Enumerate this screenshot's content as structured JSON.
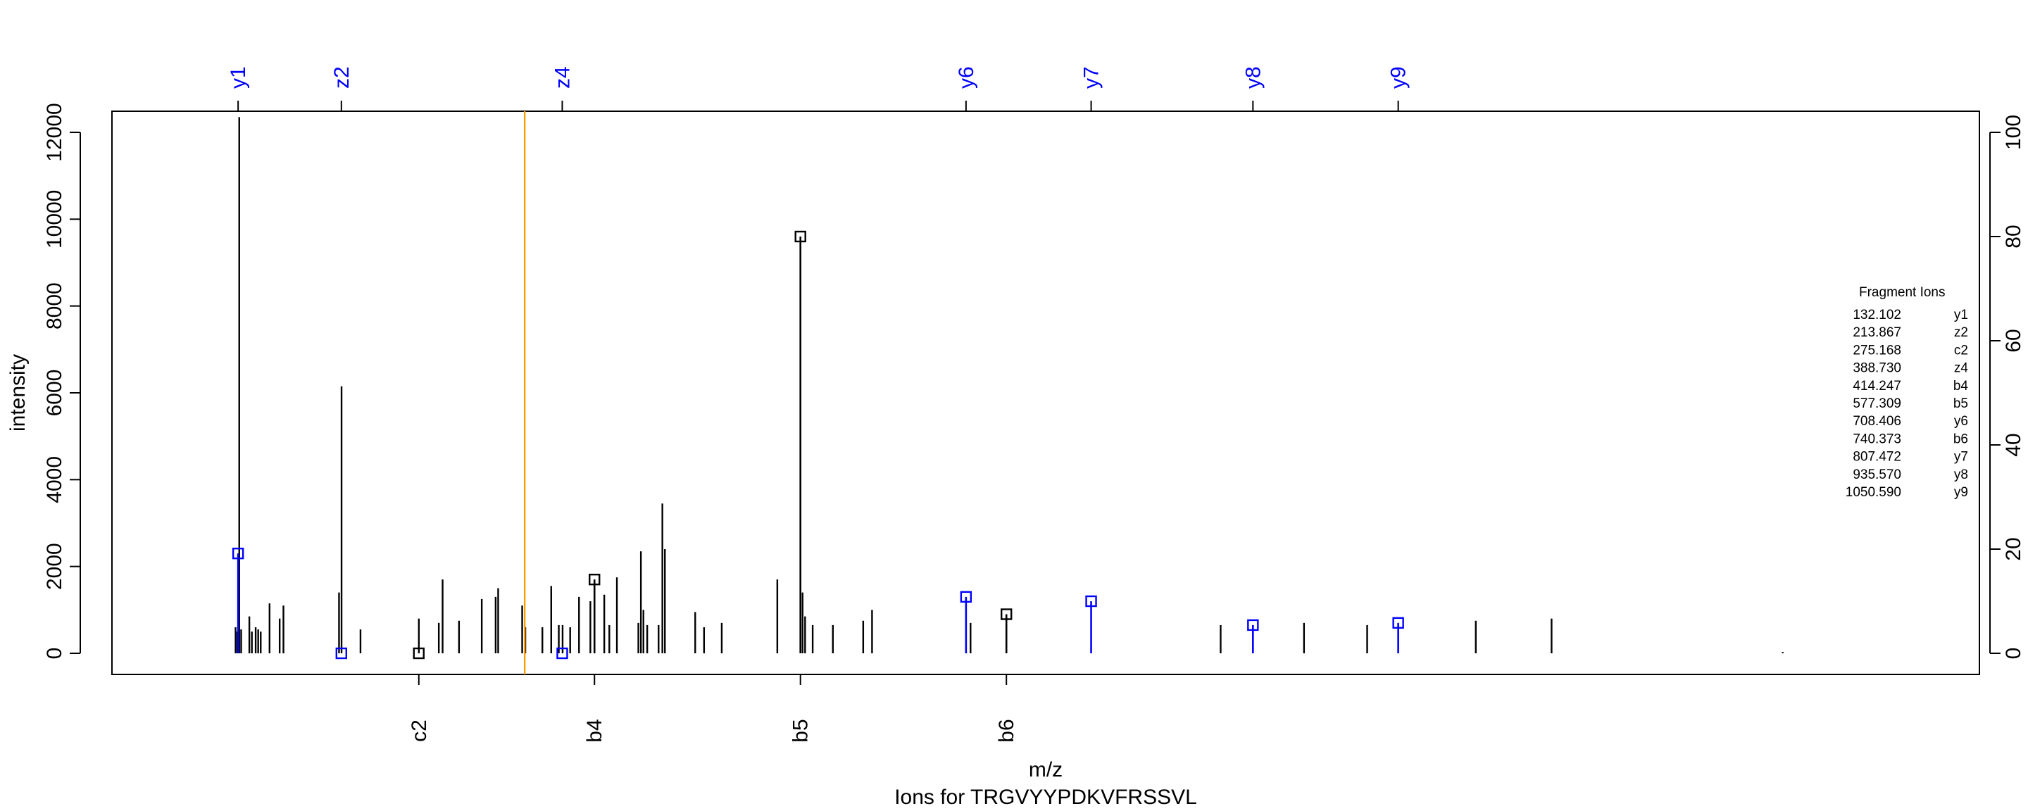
{
  "chart_data": {
    "type": "bar",
    "title": "Ions for TRGVYYPDKVFRSSVL",
    "xlabel": "m/z",
    "ylabel": "intensity",
    "xlim": [
      30,
      1460
    ],
    "ylim": [
      0,
      12400
    ],
    "ylim_right": [
      0,
      100
    ],
    "yticks_left": [
      "0",
      "2000",
      "4000",
      "6000",
      "8000",
      "10000",
      "12000"
    ],
    "yticks_left_values": [
      0,
      2000,
      4000,
      6000,
      8000,
      10000,
      12000
    ],
    "yticks_right": [
      "0",
      "20",
      "40",
      "60",
      "80",
      "100"
    ],
    "yticks_right_values": [
      0,
      20,
      40,
      60,
      80,
      100
    ],
    "grid": false,
    "precursor_line": {
      "mz": 359,
      "color": "#ff9f00"
    },
    "peaks": [
      {
        "mz": 130.1,
        "intensity": 600
      },
      {
        "mz": 131.5,
        "intensity": 500
      },
      {
        "mz": 133.0,
        "intensity": 12350
      },
      {
        "mz": 134.5,
        "intensity": 550
      },
      {
        "mz": 141,
        "intensity": 850
      },
      {
        "mz": 143,
        "intensity": 500
      },
      {
        "mz": 146,
        "intensity": 600
      },
      {
        "mz": 148,
        "intensity": 550
      },
      {
        "mz": 150,
        "intensity": 500
      },
      {
        "mz": 157,
        "intensity": 1150
      },
      {
        "mz": 165,
        "intensity": 800
      },
      {
        "mz": 168,
        "intensity": 1100
      },
      {
        "mz": 212,
        "intensity": 1400
      },
      {
        "mz": 214,
        "intensity": 6150
      },
      {
        "mz": 229,
        "intensity": 550
      },
      {
        "mz": 275.2,
        "intensity": 800
      },
      {
        "mz": 291,
        "intensity": 700
      },
      {
        "mz": 294,
        "intensity": 1700
      },
      {
        "mz": 307,
        "intensity": 750
      },
      {
        "mz": 325,
        "intensity": 1250
      },
      {
        "mz": 336,
        "intensity": 1300
      },
      {
        "mz": 338,
        "intensity": 1500
      },
      {
        "mz": 357,
        "intensity": 1100
      },
      {
        "mz": 359.5,
        "intensity": 600
      },
      {
        "mz": 373,
        "intensity": 600
      },
      {
        "mz": 380,
        "intensity": 1550
      },
      {
        "mz": 386,
        "intensity": 650
      },
      {
        "mz": 389,
        "intensity": 650
      },
      {
        "mz": 395,
        "intensity": 600
      },
      {
        "mz": 402,
        "intensity": 1300
      },
      {
        "mz": 411,
        "intensity": 1200
      },
      {
        "mz": 422,
        "intensity": 1350
      },
      {
        "mz": 426,
        "intensity": 650
      },
      {
        "mz": 432,
        "intensity": 1750
      },
      {
        "mz": 449,
        "intensity": 700
      },
      {
        "mz": 451,
        "intensity": 2350
      },
      {
        "mz": 453,
        "intensity": 1000
      },
      {
        "mz": 456,
        "intensity": 650
      },
      {
        "mz": 465,
        "intensity": 650
      },
      {
        "mz": 468,
        "intensity": 3450
      },
      {
        "mz": 470,
        "intensity": 2400
      },
      {
        "mz": 494,
        "intensity": 950
      },
      {
        "mz": 501,
        "intensity": 600
      },
      {
        "mz": 515,
        "intensity": 700
      },
      {
        "mz": 559,
        "intensity": 1700
      },
      {
        "mz": 579,
        "intensity": 1400
      },
      {
        "mz": 581,
        "intensity": 850
      },
      {
        "mz": 587,
        "intensity": 650
      },
      {
        "mz": 603,
        "intensity": 650
      },
      {
        "mz": 627,
        "intensity": 750
      },
      {
        "mz": 634,
        "intensity": 1000
      },
      {
        "mz": 712,
        "intensity": 700
      },
      {
        "mz": 910,
        "intensity": 650
      },
      {
        "mz": 976,
        "intensity": 700
      },
      {
        "mz": 1026,
        "intensity": 650
      },
      {
        "mz": 1112,
        "intensity": 750
      },
      {
        "mz": 1172,
        "intensity": 800
      },
      {
        "mz": 1355,
        "intensity": 30
      }
    ],
    "fragment_ions": [
      {
        "label": "y1",
        "mz": 132.102,
        "mz_text": "132.102",
        "intensity": 2300,
        "series": "y"
      },
      {
        "label": "z2",
        "mz": 213.867,
        "mz_text": "213.867",
        "intensity": 0,
        "series": "z"
      },
      {
        "label": "c2",
        "mz": 275.168,
        "mz_text": "275.168",
        "intensity": 0,
        "series": "c"
      },
      {
        "label": "z4",
        "mz": 388.73,
        "mz_text": "388.730",
        "intensity": 0,
        "series": "z"
      },
      {
        "label": "b4",
        "mz": 414.247,
        "mz_text": "414.247",
        "intensity": 1700,
        "series": "b"
      },
      {
        "label": "b5",
        "mz": 577.309,
        "mz_text": "577.309",
        "intensity": 9600,
        "series": "b"
      },
      {
        "label": "y6",
        "mz": 708.406,
        "mz_text": "708.406",
        "intensity": 1300,
        "series": "y"
      },
      {
        "label": "b6",
        "mz": 740.373,
        "mz_text": "740.373",
        "intensity": 900,
        "series": "b"
      },
      {
        "label": "y7",
        "mz": 807.472,
        "mz_text": "807.472",
        "intensity": 1200,
        "series": "y"
      },
      {
        "label": "y8",
        "mz": 935.57,
        "mz_text": "935.570",
        "intensity": 650,
        "series": "y"
      },
      {
        "label": "y9",
        "mz": 1050.59,
        "mz_text": "1050.590",
        "intensity": 700,
        "series": "y"
      }
    ],
    "legend": {
      "title": "Fragment Ions",
      "placement": "right"
    },
    "series_colors": {
      "b": "#000000",
      "c": "#000000",
      "y": "#0000ff",
      "z": "#0000ff"
    }
  }
}
